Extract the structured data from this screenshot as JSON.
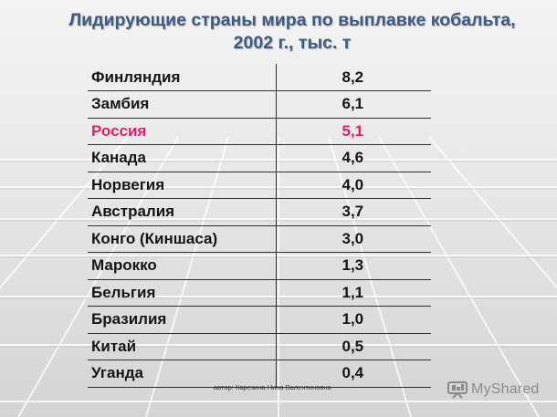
{
  "title": {
    "line1": "Лидирующие страны мира по выплавке кобальта,",
    "line2": "2002 г., тыс. т"
  },
  "table": {
    "rows": [
      {
        "country": "Финляндия",
        "value": "8,2"
      },
      {
        "country": "Замбия",
        "value": "6,1"
      },
      {
        "country": "Россия",
        "value": "5,1",
        "highlight": true
      },
      {
        "country": "Канада",
        "value": "4,6"
      },
      {
        "country": "Норвегия",
        "value": "4,0"
      },
      {
        "country": "Австралия",
        "value": "3,7"
      },
      {
        "country": "Конго (Киншаса)",
        "value": "3,0"
      },
      {
        "country": "Марокко",
        "value": "1,3"
      },
      {
        "country": "Бельгия",
        "value": "1,1"
      },
      {
        "country": "Бразилия",
        "value": "1,0"
      },
      {
        "country": "Китай",
        "value": "0,5"
      },
      {
        "country": "Уганда",
        "value": "0,4"
      }
    ]
  },
  "footer": {
    "author": "автор: Карезина Нина Валентиновна",
    "logo": {
      "text": "MyShared",
      "icon": "myshared-logo-icon"
    }
  },
  "colors": {
    "title": "#3f5b85",
    "highlight": "#e0206a",
    "text": "#151515",
    "lines": "#2e2e2e",
    "logo": "#8a8a8a"
  }
}
